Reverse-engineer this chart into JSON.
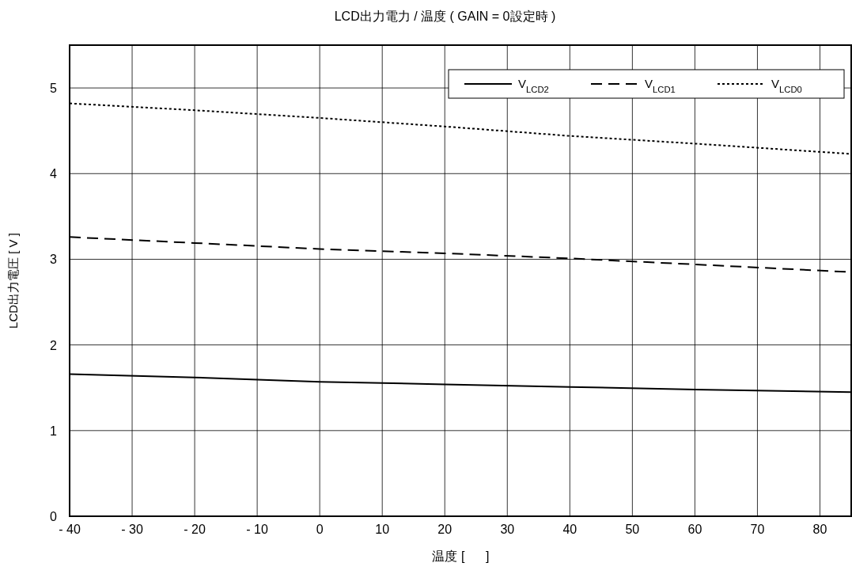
{
  "chart_data": {
    "type": "line",
    "title": "LCD出力電力 / 温度 ( GAIN = 0設定時 )",
    "xlabel": "温度 [      ]",
    "ylabel": "LCD出力電圧 [ V ]",
    "x": [
      -40,
      -20,
      0,
      20,
      40,
      60,
      85
    ],
    "series": [
      {
        "name": "V$_{LCD2}$",
        "color": "#000000",
        "line_style": "solid",
        "values": [
          1.66,
          1.62,
          1.57,
          1.54,
          1.51,
          1.48,
          1.45
        ]
      },
      {
        "name": "V$_{LCD1}$",
        "color": "#000000",
        "line_style": "dashed",
        "values": [
          3.26,
          3.19,
          3.12,
          3.07,
          3.01,
          2.94,
          2.85
        ]
      },
      {
        "name": "V$_{LCD0}$",
        "color": "#000000",
        "line_style": "dotted",
        "values": [
          4.82,
          4.74,
          4.65,
          4.55,
          4.44,
          4.35,
          4.23
        ]
      }
    ],
    "xlim": [
      -40,
      85
    ],
    "ylim": [
      0,
      5.5
    ],
    "xticks": [
      {
        "value": -40,
        "label": "- 40"
      },
      {
        "value": -30,
        "label": "- 30"
      },
      {
        "value": -20,
        "label": "- 20"
      },
      {
        "value": -10,
        "label": "- 10"
      },
      0,
      10,
      20,
      30,
      40,
      50,
      60,
      70,
      80
    ],
    "yticks": [
      0,
      1,
      2,
      3,
      4,
      5
    ],
    "grid": true,
    "legend": "top right"
  }
}
